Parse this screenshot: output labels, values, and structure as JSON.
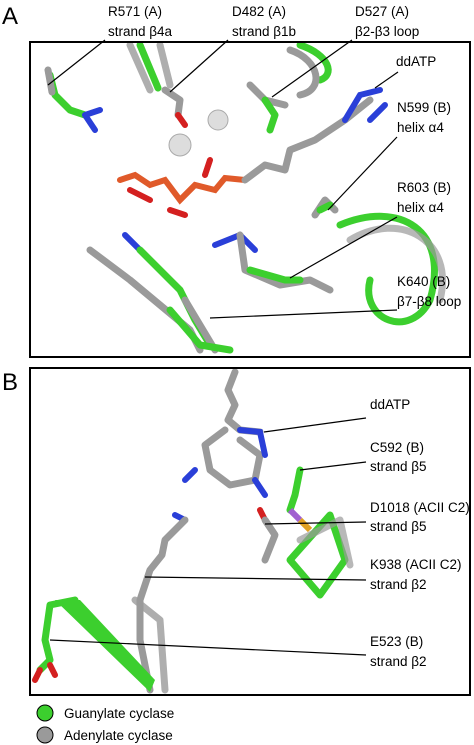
{
  "panels": [
    {
      "label": "A",
      "callouts": [
        [
          "R571 (A)",
          "strand β4a"
        ],
        [
          "D482 (A)",
          "strand β1b"
        ],
        [
          "D527 (A)",
          "β2-β3 loop"
        ],
        [
          "ddATP"
        ],
        [
          "N599 (B)",
          "helix α4"
        ],
        [
          "R603 (B)",
          "helix α4"
        ],
        [
          "K640 (B)",
          "β7-β8 loop"
        ]
      ]
    },
    {
      "label": "B",
      "callouts": [
        [
          "ddATP"
        ],
        [
          "C592 (B)",
          "strand β5"
        ],
        [
          "D1018 (ACII C2)",
          "strand β5"
        ],
        [
          "K938 (ACII C2)",
          "strand β2"
        ],
        [
          "E523 (B)",
          "strand β2"
        ]
      ]
    }
  ],
  "legend": [
    "Guanylate cyclase",
    "Adenylate cyclase"
  ]
}
